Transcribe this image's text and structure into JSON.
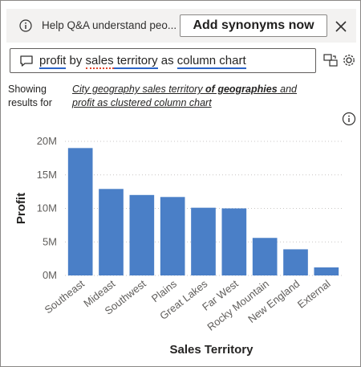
{
  "notice": {
    "text": "Help Q&A understand peo...",
    "button_label": "Add synonyms now"
  },
  "query": {
    "tokens": [
      {
        "text": "profit",
        "style": "blue"
      },
      {
        "text": " by ",
        "style": "none"
      },
      {
        "text": "sales",
        "style": "red"
      },
      {
        "text": " territory",
        "style": "blue"
      },
      {
        "text": " as ",
        "style": "none"
      },
      {
        "text": "column chart",
        "style": "blue"
      }
    ]
  },
  "results": {
    "prefix": "Showing results for",
    "parts": [
      {
        "text": "City geography sales territory ",
        "bold": false
      },
      {
        "text": "of geographies",
        "bold": true
      },
      {
        "text": " and ",
        "bold": false
      },
      {
        "text": "profit as clustered column chart",
        "bold": false
      }
    ]
  },
  "icons": {
    "info": "info-icon",
    "close": "close-icon",
    "chat": "chat-bubble-icon",
    "share": "share-icon",
    "gear": "gear-icon"
  },
  "colors": {
    "bar": "#4a7fc7",
    "notice_bg": "#f3f2f1",
    "underline_blue": "#2b64c8",
    "underline_red": "#e0442b"
  },
  "chart_data": {
    "type": "bar",
    "xlabel": "Sales Territory",
    "ylabel": "Profit",
    "categories": [
      "Southeast",
      "Mideast",
      "Southwest",
      "Plains",
      "Great Lakes",
      "Far West",
      "Rocky Mountain",
      "New England",
      "External"
    ],
    "values": [
      19.0,
      12.9,
      12.0,
      11.7,
      10.1,
      10.0,
      5.6,
      3.9,
      1.2
    ],
    "value_unit": "M",
    "yticks": [
      "0M",
      "5M",
      "10M",
      "15M",
      "20M"
    ],
    "ylim": [
      0,
      20
    ],
    "grid": true,
    "legend": "none"
  }
}
